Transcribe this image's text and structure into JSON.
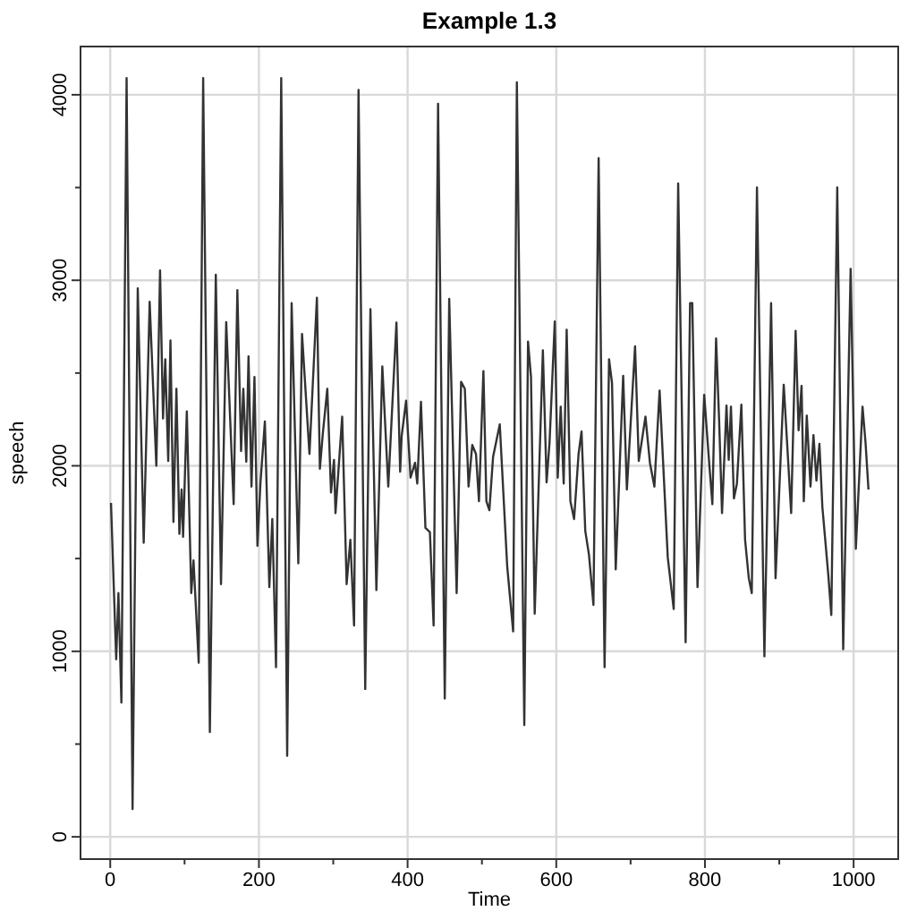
{
  "chart_data": {
    "type": "line",
    "title": "Example 1.3",
    "xlabel": "Time",
    "ylabel": "speech",
    "grid": true,
    "line_style": "solid",
    "xlim": [
      -40,
      1060
    ],
    "ylim": [
      -120,
      4260
    ],
    "xticks": [
      0,
      {
        "value": 100,
        "label": null
      },
      200,
      {
        "value": 300,
        "label": null
      },
      400,
      {
        "value": 500,
        "label": null
      },
      600,
      {
        "value": 700,
        "label": null
      },
      800,
      {
        "value": 900,
        "label": null
      },
      1000
    ],
    "yticks": [
      0,
      {
        "value": 500,
        "label": null
      },
      1000,
      {
        "value": 1500,
        "label": null
      },
      2000,
      {
        "value": 2500,
        "label": null
      },
      3000,
      {
        "value": 3500,
        "label": null
      },
      4000
    ],
    "series": [
      {
        "color": "#333333",
        "x": [
          1,
          8,
          11,
          15,
          22,
          30,
          37,
          45,
          53,
          62,
          67,
          71,
          74,
          78,
          81,
          85,
          89,
          93,
          96,
          98,
          103,
          109,
          112,
          119,
          125,
          134,
          142,
          149,
          156,
          166,
          171,
          176,
          179,
          183,
          186,
          190,
          194,
          198,
          202,
          208,
          214,
          218,
          223,
          230,
          238,
          244,
          253,
          258,
          268,
          278,
          282,
          286,
          292,
          297,
          301,
          303,
          312,
          318,
          323,
          328,
          334,
          343,
          350,
          358,
          366,
          374,
          385,
          390,
          392,
          398,
          404,
          410,
          413,
          418,
          424,
          430,
          435,
          441,
          450,
          456,
          466,
          472,
          477,
          482,
          487,
          492,
          496,
          502,
          506,
          510,
          515,
          524,
          534,
          542,
          547,
          557,
          562,
          566,
          571,
          582,
          587,
          591,
          598,
          602,
          606,
          610,
          614,
          619,
          624,
          630,
          634,
          639,
          644,
          650,
          657,
          665,
          671,
          675,
          680,
          690,
          695,
          706,
          711,
          720,
          726,
          732,
          739,
          750,
          758,
          764,
          774,
          780,
          783,
          790,
          799,
          806,
          810,
          815,
          819,
          823,
          829,
          832,
          835,
          839,
          843,
          849,
          854,
          859,
          863,
          870,
          880,
          889,
          895,
          906,
          916,
          922,
          926,
          930,
          933,
          937,
          942,
          946,
          950,
          954,
          958,
          966,
          970,
          978,
          986,
          996,
          1003,
          1012,
          1016,
          1020
        ],
        "values": [
          1800,
          957,
          1314,
          724,
          4090,
          150,
          2957,
          1585,
          2884,
          2000,
          3053,
          2255,
          2574,
          2026,
          2676,
          1697,
          2415,
          1633,
          1872,
          1617,
          2293,
          1314,
          1490,
          938,
          4090,
          565,
          3030,
          1362,
          2775,
          1793,
          2947,
          2080,
          2415,
          2022,
          2590,
          1888,
          2479,
          1569,
          1904,
          2239,
          1346,
          1713,
          915,
          4090,
          437,
          2877,
          1474,
          2711,
          2064,
          2906,
          1984,
          2175,
          2415,
          1856,
          2032,
          1745,
          2265,
          1362,
          1601,
          1139,
          4026,
          797,
          2845,
          1330,
          2536,
          1888,
          2772,
          1968,
          2160,
          2351,
          1936,
          2016,
          1904,
          2345,
          1665,
          1643,
          1139,
          3952,
          746,
          2900,
          1314,
          2453,
          2415,
          1888,
          2112,
          2064,
          1809,
          2511,
          1809,
          1761,
          2048,
          2223,
          1458,
          1107,
          4067,
          603,
          2670,
          2479,
          1203,
          2622,
          1911,
          2128,
          2778,
          1936,
          2319,
          1904,
          2734,
          1809,
          1713,
          2064,
          2185,
          1650,
          1521,
          1250,
          3659,
          915,
          2574,
          2447,
          1442,
          2485,
          1872,
          2644,
          2026,
          2265,
          2016,
          1888,
          2406,
          1506,
          1228,
          3522,
          1049,
          2877,
          2877,
          1346,
          2383,
          2000,
          1793,
          2686,
          2255,
          1745,
          2325,
          2032,
          2319,
          1824,
          1904,
          2329,
          1601,
          1394,
          1314,
          3500,
          973,
          2877,
          1394,
          2437,
          1745,
          2727,
          2191,
          2431,
          1809,
          2271,
          1888,
          2166,
          1920,
          2118,
          1777,
          1410,
          1196,
          3500,
          1011,
          3062,
          1553,
          2319,
          2128,
          1872
        ]
      }
    ]
  }
}
